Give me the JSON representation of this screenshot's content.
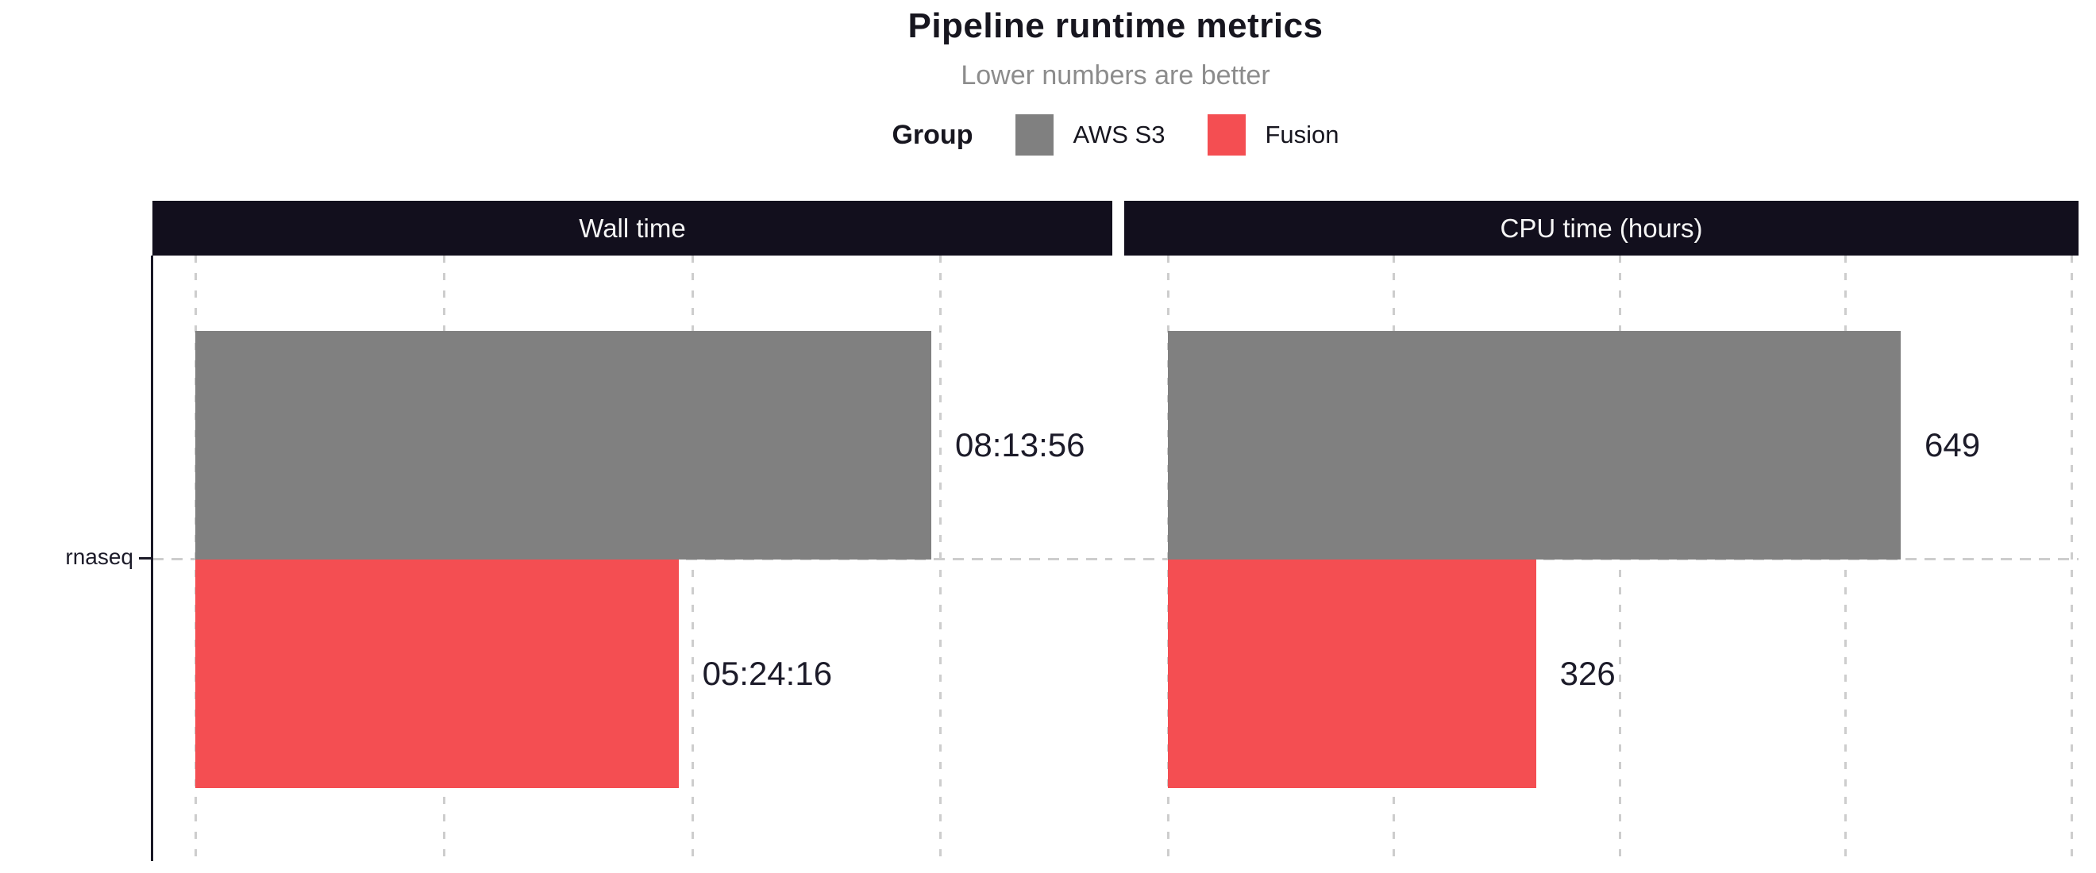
{
  "chart_data": {
    "type": "bar",
    "orientation": "horizontal",
    "title": "Pipeline runtime metrics",
    "subtitle": "Lower numbers are better",
    "legend": {
      "position": "top",
      "title": "Group",
      "entries": [
        {
          "label": "AWS S3",
          "color": "#808080"
        },
        {
          "label": "Fusion",
          "color": "#f44e52"
        }
      ]
    },
    "categories": [
      "rnaseq"
    ],
    "category_label": "rnaseq",
    "grid": "dashed-vertical",
    "panels": [
      {
        "title": "Wall time",
        "unit": "seconds",
        "axis_max": 36925,
        "gridline_values": [
          0,
          10000,
          20000,
          30000
        ],
        "series": [
          {
            "name": "AWS S3",
            "value": 29636,
            "label": "08:13:56",
            "color": "#808080"
          },
          {
            "name": "Fusion",
            "value": 19456,
            "label": "05:24:16",
            "color": "#f44e52"
          }
        ]
      },
      {
        "title": "CPU time (hours)",
        "unit": "hours",
        "axis_max": 803,
        "gridline_values": [
          0,
          200,
          400,
          600,
          800
        ],
        "series": [
          {
            "name": "AWS S3",
            "value": 649,
            "label": "649",
            "color": "#808080"
          },
          {
            "name": "Fusion",
            "value": 326,
            "label": "326",
            "color": "#f44e52"
          }
        ]
      }
    ],
    "colors": {
      "panel_header_bg": "#120f1d",
      "panel_header_text": "#f5f5f5",
      "axis": "#1a1927",
      "gridline": "#cdcdcd",
      "title_text": "#17161f",
      "subtitle_text": "#8c8c8c",
      "bar_label_text": "#1c1b29",
      "background": "#ffffff"
    }
  }
}
